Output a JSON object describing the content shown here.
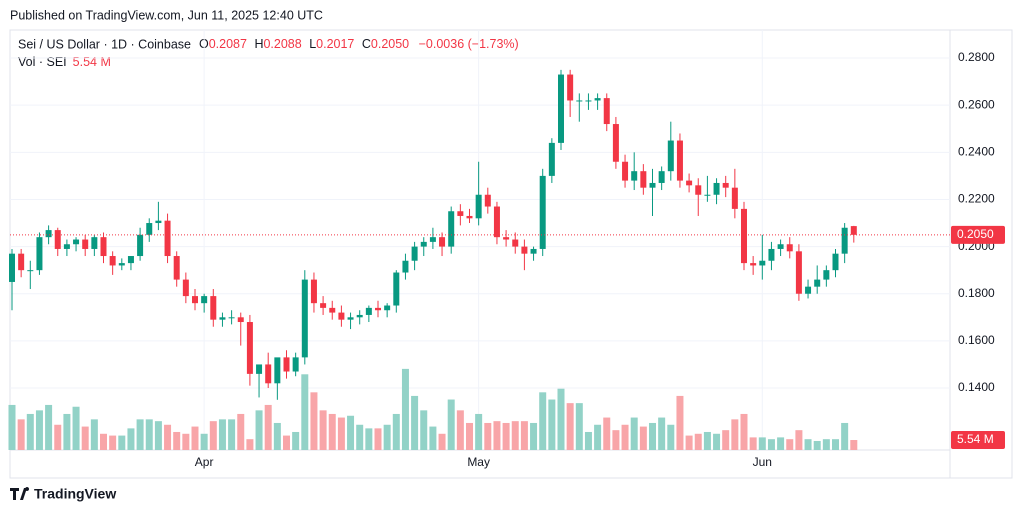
{
  "header": {
    "published": "Published on TradingView.com, Jun 11, 2025 12:40 UTC",
    "brand": "TradingView"
  },
  "chart_data": {
    "type": "candlestick",
    "title": "Sei / US Dollar · 1D · Coinbase",
    "ohlc_legend": {
      "o_label": "O",
      "o": "0.2087",
      "h_label": "H",
      "h": "0.2088",
      "l_label": "L",
      "l": "0.2017",
      "c_label": "C",
      "c": "0.2050",
      "change": "−0.0036 (−1.73%)"
    },
    "volume_legend": {
      "name": "Vol · SEI",
      "value": "5.54 M"
    },
    "categories": [
      null,
      null,
      null,
      null,
      null,
      null,
      null,
      null,
      null,
      null,
      null,
      null,
      null,
      null,
      null,
      null,
      null,
      null,
      null,
      null,
      null,
      "Apr",
      null,
      null,
      null,
      null,
      null,
      null,
      null,
      null,
      null,
      null,
      null,
      null,
      null,
      null,
      null,
      null,
      null,
      null,
      null,
      null,
      null,
      null,
      null,
      null,
      null,
      null,
      null,
      null,
      null,
      "May",
      null,
      null,
      null,
      null,
      null,
      null,
      null,
      null,
      null,
      null,
      null,
      null,
      null,
      null,
      null,
      null,
      null,
      null,
      null,
      null,
      null,
      null,
      null,
      null,
      null,
      null,
      null,
      null,
      null,
      null,
      "Jun",
      null,
      null,
      null,
      null,
      null,
      null,
      null,
      null,
      null,
      null
    ],
    "open": [
      0.185,
      0.197,
      0.19,
      0.19,
      0.204,
      0.207,
      0.199,
      0.201,
      0.203,
      0.199,
      0.204,
      0.196,
      0.192,
      0.193,
      0.196,
      0.205,
      0.21,
      0.211,
      0.196,
      0.186,
      0.179,
      0.176,
      0.179,
      0.169,
      0.17,
      0.17,
      0.168,
      0.146,
      0.15,
      0.142,
      0.153,
      0.147,
      0.153,
      0.186,
      0.176,
      0.174,
      0.172,
      0.169,
      0.17,
      0.171,
      0.174,
      0.173,
      0.175,
      0.189,
      0.194,
      0.2,
      0.202,
      0.204,
      0.2,
      0.215,
      0.213,
      0.212,
      0.222,
      0.217,
      0.204,
      0.203,
      0.2,
      0.197,
      0.199,
      0.23,
      0.244,
      0.273,
      0.262,
      0.262,
      0.262,
      0.263,
      0.252,
      0.236,
      0.228,
      0.232,
      0.225,
      0.227,
      0.232,
      0.245,
      0.228,
      0.226,
      0.222,
      0.222,
      0.227,
      0.225,
      0.216,
      0.193,
      0.192,
      0.194,
      0.199,
      0.201,
      0.198,
      0.18,
      0.183,
      0.186,
      0.19,
      0.197,
      0.2087
    ],
    "high": [
      0.199,
      0.199,
      0.194,
      0.206,
      0.209,
      0.208,
      0.203,
      0.204,
      0.205,
      0.205,
      0.206,
      0.198,
      0.195,
      0.196,
      0.208,
      0.212,
      0.219,
      0.214,
      0.198,
      0.189,
      0.182,
      0.18,
      0.182,
      0.172,
      0.173,
      0.172,
      0.171,
      0.149,
      0.155,
      0.152,
      0.156,
      0.155,
      0.19,
      0.189,
      0.179,
      0.177,
      0.175,
      0.172,
      0.173,
      0.175,
      0.177,
      0.176,
      0.19,
      0.197,
      0.202,
      0.204,
      0.208,
      0.206,
      0.217,
      0.218,
      0.216,
      0.236,
      0.225,
      0.219,
      0.207,
      0.206,
      0.203,
      0.2,
      0.233,
      0.246,
      0.275,
      0.275,
      0.265,
      0.265,
      0.265,
      0.265,
      0.255,
      0.239,
      0.24,
      0.235,
      0.233,
      0.234,
      0.253,
      0.248,
      0.231,
      0.229,
      0.23,
      0.229,
      0.23,
      0.233,
      0.219,
      0.196,
      0.205,
      0.202,
      0.203,
      0.204,
      0.201,
      0.186,
      0.192,
      0.192,
      0.199,
      0.21,
      0.2088
    ],
    "low": [
      0.173,
      0.187,
      0.182,
      0.188,
      0.201,
      0.196,
      0.196,
      0.198,
      0.196,
      0.196,
      0.193,
      0.188,
      0.19,
      0.19,
      0.194,
      0.202,
      0.207,
      0.193,
      0.183,
      0.176,
      0.173,
      0.172,
      0.166,
      0.166,
      0.167,
      0.158,
      0.141,
      0.136,
      0.14,
      0.135,
      0.144,
      0.145,
      0.15,
      0.172,
      0.171,
      0.169,
      0.166,
      0.165,
      0.167,
      0.168,
      0.17,
      0.17,
      0.172,
      0.186,
      0.19,
      0.196,
      0.199,
      0.196,
      0.197,
      0.209,
      0.21,
      0.209,
      0.214,
      0.201,
      0.2,
      0.197,
      0.19,
      0.194,
      0.196,
      0.227,
      0.241,
      0.255,
      0.253,
      0.258,
      0.258,
      0.249,
      0.233,
      0.225,
      0.224,
      0.222,
      0.213,
      0.224,
      0.228,
      0.225,
      0.223,
      0.213,
      0.219,
      0.218,
      0.221,
      0.212,
      0.19,
      0.188,
      0.186,
      0.19,
      0.196,
      0.195,
      0.177,
      0.178,
      0.18,
      0.183,
      0.187,
      0.193,
      0.2017
    ],
    "close": [
      0.197,
      0.19,
      0.19,
      0.204,
      0.207,
      0.199,
      0.201,
      0.203,
      0.199,
      0.204,
      0.196,
      0.192,
      0.193,
      0.196,
      0.205,
      0.21,
      0.211,
      0.196,
      0.186,
      0.179,
      0.176,
      0.179,
      0.169,
      0.17,
      0.17,
      0.168,
      0.146,
      0.15,
      0.142,
      0.153,
      0.147,
      0.153,
      0.186,
      0.176,
      0.174,
      0.172,
      0.169,
      0.17,
      0.171,
      0.174,
      0.173,
      0.175,
      0.189,
      0.194,
      0.2,
      0.202,
      0.204,
      0.2,
      0.215,
      0.213,
      0.212,
      0.222,
      0.217,
      0.204,
      0.203,
      0.2,
      0.197,
      0.199,
      0.23,
      0.244,
      0.273,
      0.262,
      0.262,
      0.262,
      0.263,
      0.252,
      0.236,
      0.228,
      0.232,
      0.225,
      0.227,
      0.232,
      0.245,
      0.228,
      0.226,
      0.222,
      0.222,
      0.227,
      0.225,
      0.216,
      0.193,
      0.192,
      0.194,
      0.199,
      0.201,
      0.198,
      0.18,
      0.183,
      0.186,
      0.19,
      0.197,
      0.208,
      0.205
    ],
    "volume": [
      25,
      17,
      20,
      22,
      25,
      14,
      20,
      24,
      13,
      17,
      9,
      8,
      8,
      12,
      17,
      17,
      16,
      14,
      10,
      9,
      13,
      9,
      16,
      17,
      17,
      20,
      6,
      22,
      25,
      15,
      8,
      10,
      42,
      32,
      22,
      20,
      18,
      19,
      14,
      12,
      12,
      14,
      20,
      45,
      30,
      22,
      13,
      9,
      28,
      22,
      15,
      20,
      15,
      16,
      15,
      16,
      16,
      15,
      32,
      28,
      34,
      26,
      26,
      10,
      14,
      18,
      11,
      14,
      18,
      13,
      15,
      18,
      14,
      30,
      8,
      9,
      10,
      9,
      11,
      17,
      20,
      7,
      7,
      6,
      7,
      6,
      11,
      6,
      5,
      6,
      6,
      15,
      5.54
    ],
    "up_color": "#089981",
    "down_color": "#f23645",
    "volume_up_color": "#92d2c7",
    "volume_down_color": "#f8a5a8",
    "ylim": [
      0.1137,
      0.2919
    ],
    "volume_ylim": [
      0,
      233
    ],
    "yticks": [
      {
        "value": 0.28,
        "label": "0.2800"
      },
      {
        "value": 0.26,
        "label": "0.2600"
      },
      {
        "value": 0.24,
        "label": "0.2400"
      },
      {
        "value": 0.22,
        "label": "0.2200"
      },
      {
        "value": 0.2,
        "label": "0.2000"
      },
      {
        "value": 0.18,
        "label": "0.1800"
      },
      {
        "value": 0.16,
        "label": "0.1600"
      },
      {
        "value": 0.14,
        "label": "0.1400"
      }
    ],
    "price_label": "0.2050",
    "volume_label": "5.54 M",
    "grid": true
  }
}
